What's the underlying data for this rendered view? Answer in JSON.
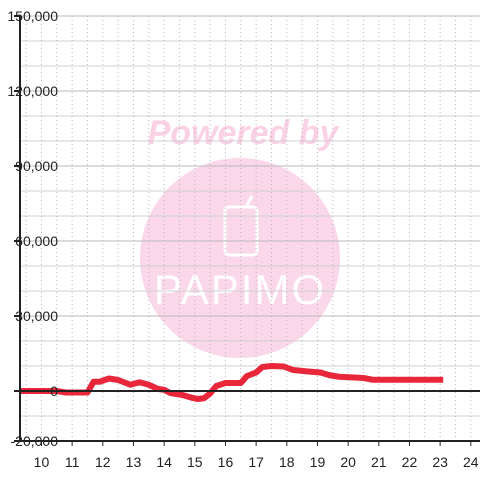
{
  "chart_data": {
    "type": "line",
    "title": "",
    "xlabel": "",
    "ylabel": "",
    "xlim": [
      9.3,
      24.3
    ],
    "ylim": [
      -20000,
      150000
    ],
    "x_ticks": [
      10,
      11,
      12,
      13,
      14,
      15,
      16,
      17,
      18,
      19,
      20,
      21,
      22,
      23,
      24
    ],
    "x_tick_labels": [
      "10",
      "11",
      "12",
      "13",
      "14",
      "15",
      "16",
      "17",
      "18",
      "19",
      "20",
      "21",
      "22",
      "23",
      "24"
    ],
    "y_ticks": [
      -20000,
      0,
      30000,
      60000,
      90000,
      120000,
      150000
    ],
    "y_tick_labels": [
      "-20,000",
      "0",
      "30,000",
      "60,000",
      "90,000",
      "120,000",
      "150,000"
    ],
    "grid": true,
    "legend": "none",
    "series": [
      {
        "color": "#e8283a",
        "points": [
          [
            9.3,
            0
          ],
          [
            10.5,
            0
          ],
          [
            10.8,
            -600
          ],
          [
            11.5,
            -600
          ],
          [
            11.7,
            3700
          ],
          [
            11.9,
            3700
          ],
          [
            12.2,
            5000
          ],
          [
            12.5,
            4400
          ],
          [
            12.9,
            2500
          ],
          [
            13.2,
            3500
          ],
          [
            13.5,
            2500
          ],
          [
            13.8,
            800
          ],
          [
            14.0,
            500
          ],
          [
            14.2,
            -800
          ],
          [
            14.6,
            -1600
          ],
          [
            14.9,
            -2700
          ],
          [
            15.1,
            -3200
          ],
          [
            15.3,
            -2900
          ],
          [
            15.5,
            -1000
          ],
          [
            15.7,
            2000
          ],
          [
            16.0,
            3200
          ],
          [
            16.5,
            3200
          ],
          [
            16.7,
            6000
          ],
          [
            17.0,
            7400
          ],
          [
            17.2,
            9600
          ],
          [
            17.5,
            10000
          ],
          [
            17.9,
            9800
          ],
          [
            18.2,
            8400
          ],
          [
            18.7,
            7800
          ],
          [
            19.1,
            7400
          ],
          [
            19.4,
            6300
          ],
          [
            19.7,
            5700
          ],
          [
            20.2,
            5400
          ],
          [
            20.5,
            5200
          ],
          [
            20.8,
            4500
          ],
          [
            21.5,
            4500
          ],
          [
            22.5,
            4500
          ],
          [
            23.1,
            4500
          ]
        ]
      }
    ]
  },
  "watermark": {
    "text": "Powered by",
    "brand": "PAPIMO",
    "colors": {
      "circle": "#fbd7ea",
      "text": "#fbd1e6",
      "brand": "#ffffff"
    }
  },
  "colors": {
    "line": "#e8283a",
    "axis": "#222222",
    "major_grid": "#b9b9b9",
    "minor_grid": "#d0d0d0"
  }
}
